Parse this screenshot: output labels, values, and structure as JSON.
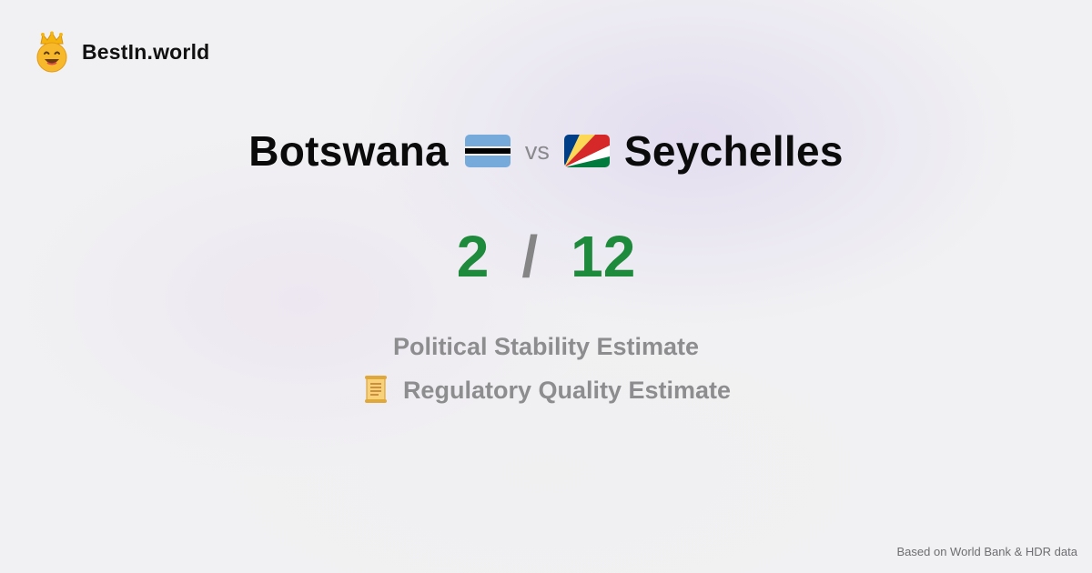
{
  "brand": {
    "name": "BestIn.world",
    "logo_icon": "crowned-smiley-icon"
  },
  "comparison": {
    "left_country": "Botswana",
    "left_flag_icon": "botswana-flag-icon",
    "vs_label": "vs",
    "right_country": "Seychelles",
    "right_flag_icon": "seychelles-flag-icon"
  },
  "scores": {
    "left": "2",
    "separator": "/",
    "right": "12",
    "color": "#1e8a3b"
  },
  "metrics": {
    "primary": "Political Stability Estimate",
    "secondary": "Regulatory Quality Estimate",
    "secondary_icon": "scroll-icon"
  },
  "footer": {
    "source_text": "Based on World Bank & HDR data"
  }
}
